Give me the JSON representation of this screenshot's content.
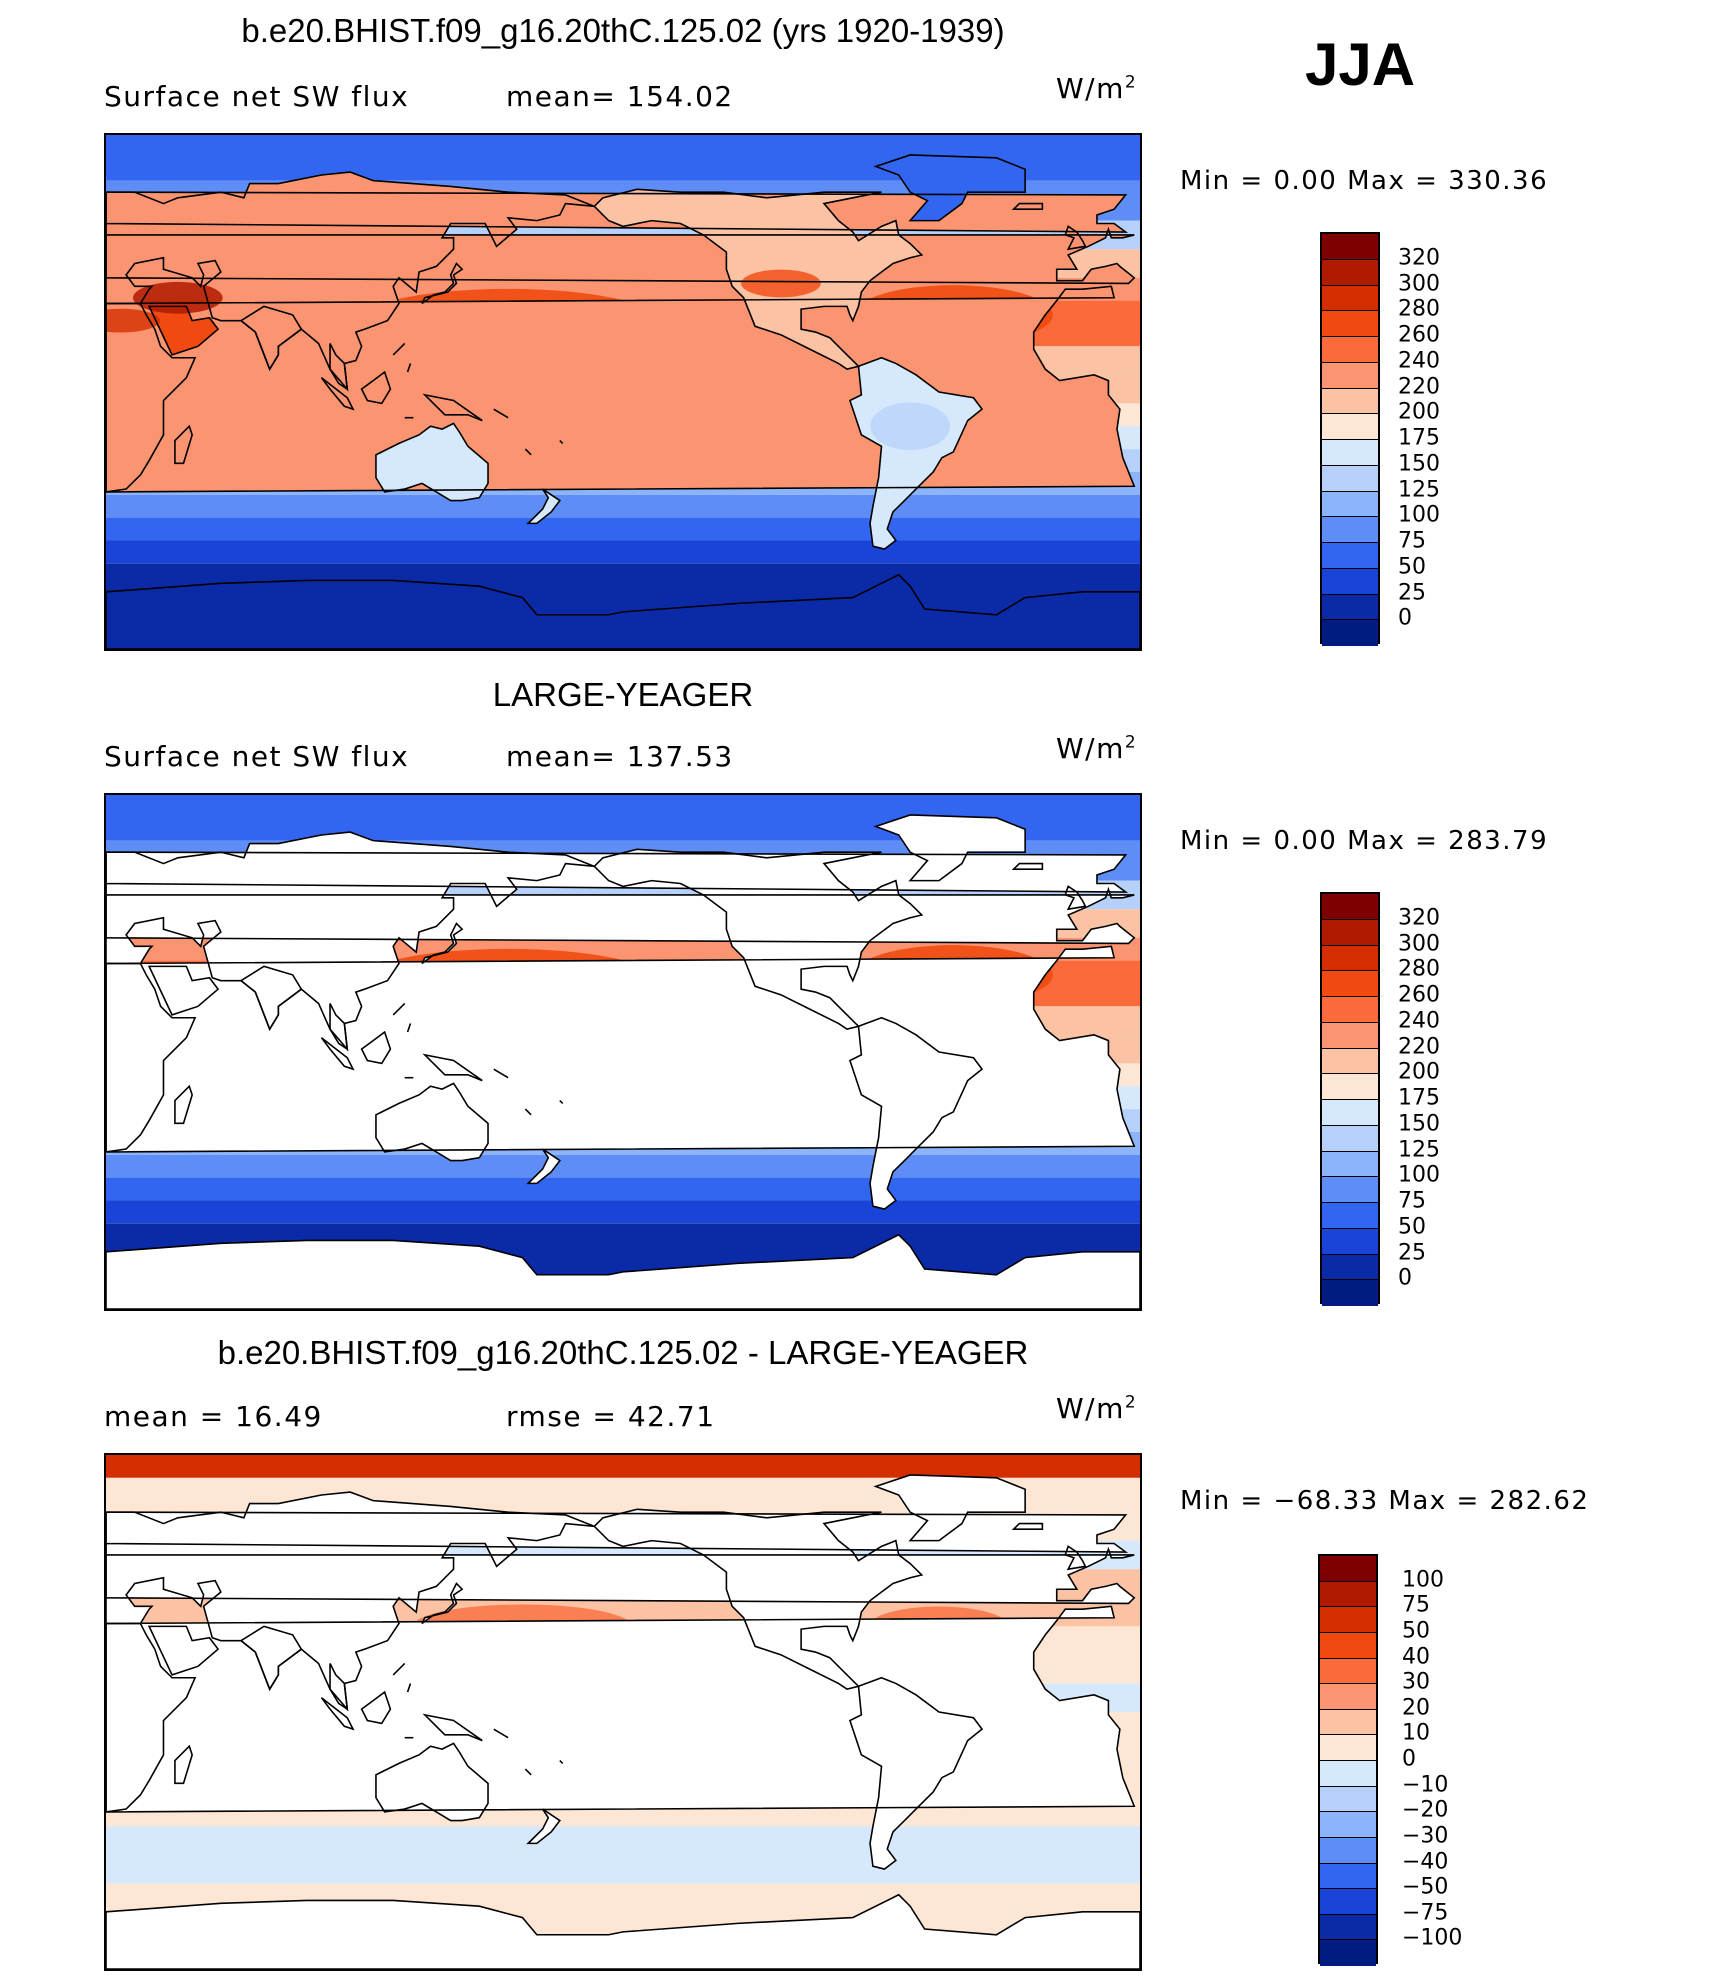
{
  "season": "JJA",
  "panels": [
    {
      "title": "b.e20.BHIST.f09_g16.20thC.125.02 (yrs 1920-1939)",
      "left_text": "Surface net SW flux",
      "right_text": "mean=  154.02",
      "units": "W/m",
      "units_sup": "2",
      "minmax": "Min  =     0.00  Max  =  330.36",
      "colorbar": {
        "labels": [
          "320",
          "300",
          "280",
          "260",
          "240",
          "220",
          "200",
          "175",
          "150",
          "125",
          "100",
          "75",
          "50",
          "25",
          "0"
        ],
        "colors": [
          "#7f0000",
          "#b01a00",
          "#d42e00",
          "#f04a10",
          "#fa6a3a",
          "#fb9470",
          "#fcc2a4",
          "#fde6d4",
          "#d6e8fb",
          "#b4d0fb",
          "#8cb4fb",
          "#5e8ef5",
          "#3366f0",
          "#1a44d8",
          "#0a2aa8",
          "#001c80"
        ]
      },
      "map_field": "seq"
    },
    {
      "title": "LARGE-YEAGER",
      "left_text": "Surface net SW flux",
      "right_text": "mean=  137.53",
      "units": "W/m",
      "units_sup": "2",
      "minmax": "Min  =     0.00  Max  =  283.79",
      "colorbar": {
        "labels": [
          "320",
          "300",
          "280",
          "260",
          "240",
          "220",
          "200",
          "175",
          "150",
          "125",
          "100",
          "75",
          "50",
          "25",
          "0"
        ],
        "colors": [
          "#7f0000",
          "#b01a00",
          "#d42e00",
          "#f04a10",
          "#fa6a3a",
          "#fb9470",
          "#fcc2a4",
          "#fde6d4",
          "#d6e8fb",
          "#b4d0fb",
          "#8cb4fb",
          "#5e8ef5",
          "#3366f0",
          "#1a44d8",
          "#0a2aa8",
          "#001c80"
        ]
      },
      "map_field": "obs"
    },
    {
      "title": "b.e20.BHIST.f09_g16.20thC.125.02 - LARGE-YEAGER",
      "left_text": "mean  =    16.49",
      "right_text": "rmse  =    42.71",
      "units": "W/m",
      "units_sup": "2",
      "minmax": "Min  =  −68.33  Max  =  282.62",
      "colorbar": {
        "labels": [
          "100",
          "75",
          "50",
          "40",
          "30",
          "20",
          "10",
          "0",
          "−10",
          "−20",
          "−30",
          "−40",
          "−50",
          "−75",
          "−100"
        ],
        "colors": [
          "#7f0000",
          "#b01a00",
          "#d42e00",
          "#f04a10",
          "#fa6a3a",
          "#fb9470",
          "#fcc2a4",
          "#fde6d4",
          "#d6e8fb",
          "#b4d0fb",
          "#8cb4fb",
          "#5e8ef5",
          "#3366f0",
          "#1a44d8",
          "#0a2aa8",
          "#001c80"
        ]
      },
      "map_field": "diff"
    }
  ]
}
